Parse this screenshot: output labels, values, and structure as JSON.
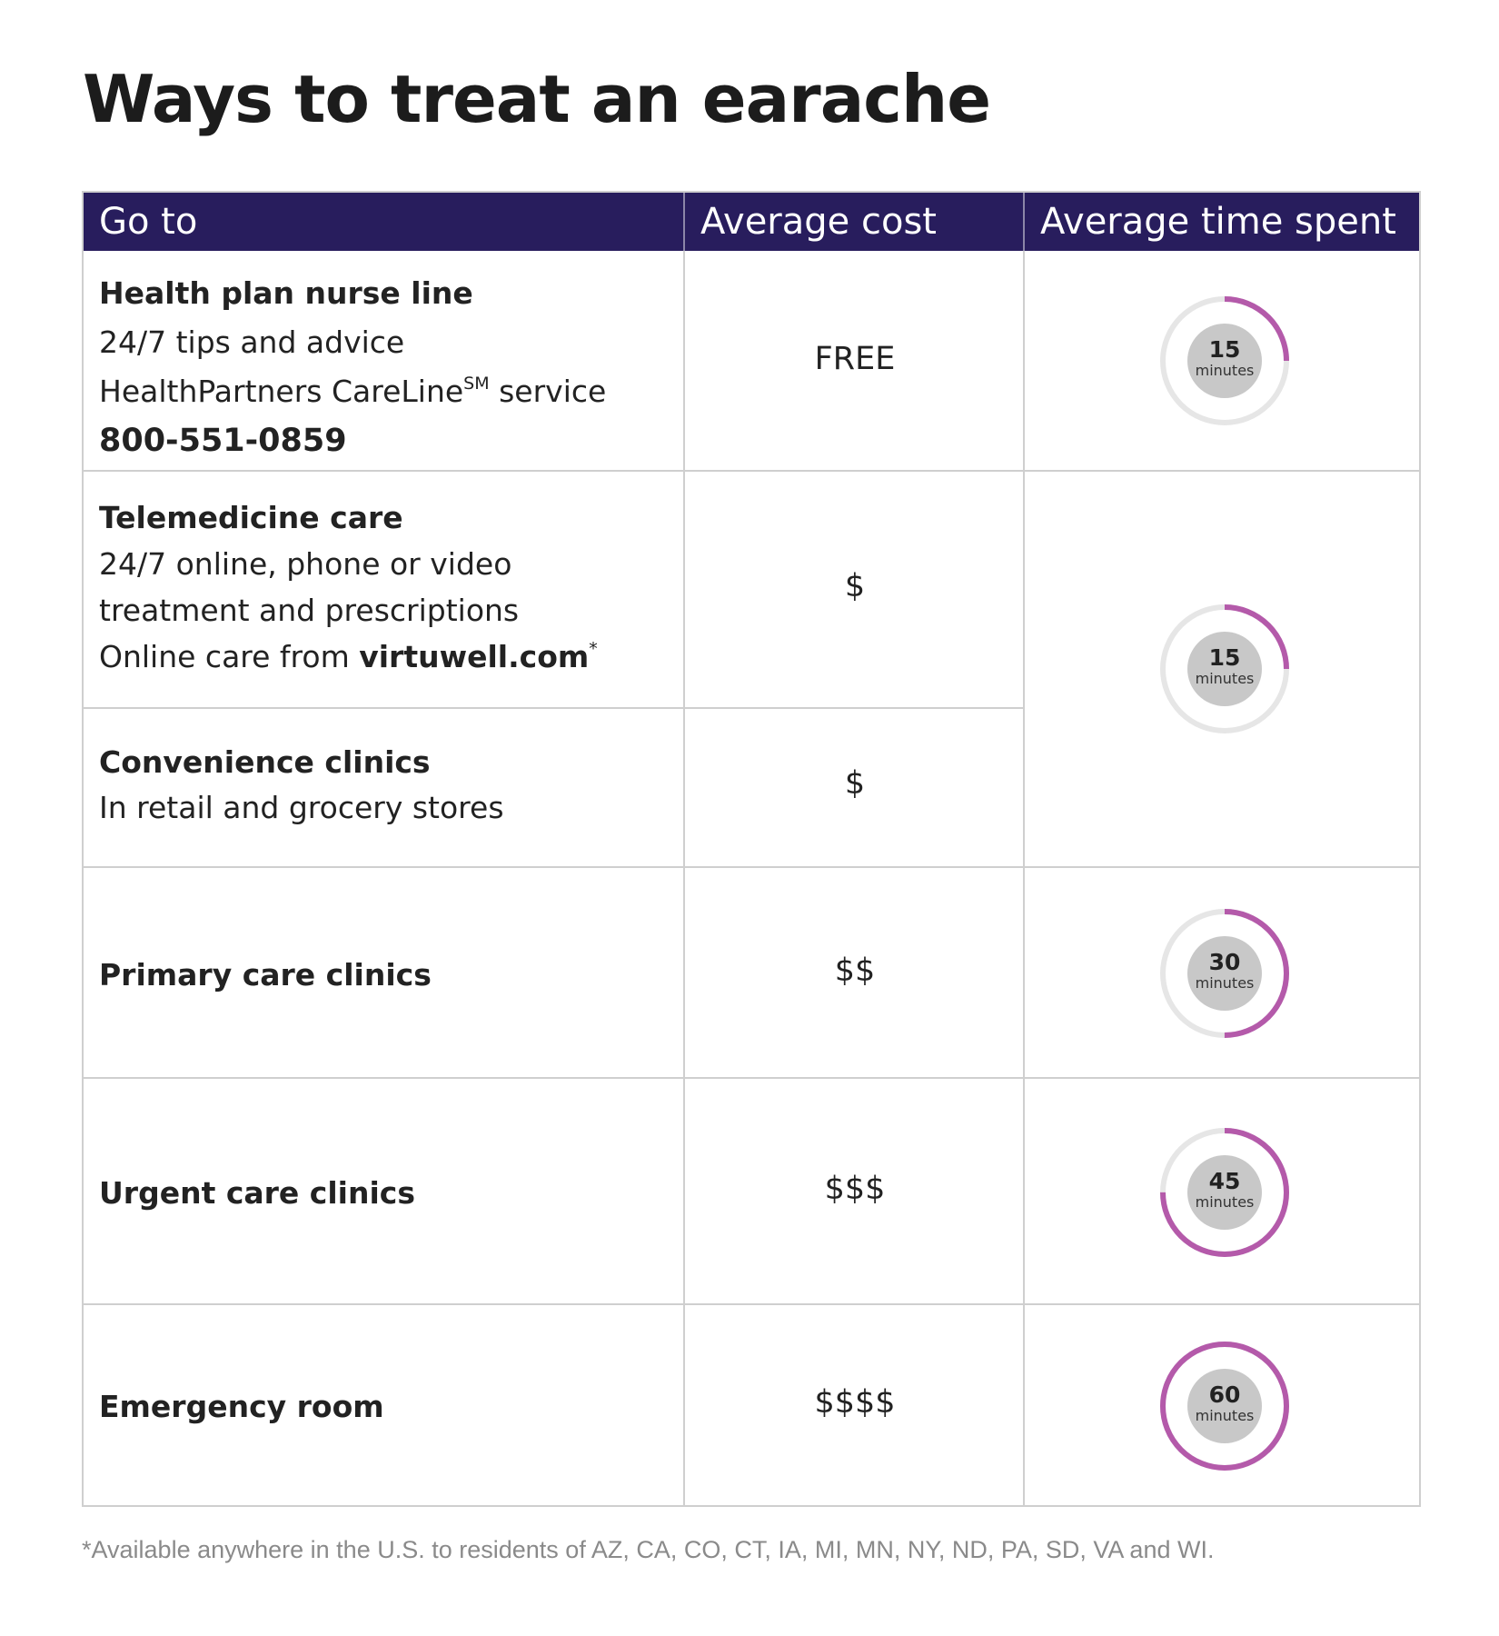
{
  "title": "Ways to treat an earache",
  "table": {
    "headers": [
      "Go to",
      "Average cost",
      "Average time spent"
    ],
    "rows": [
      {
        "name": "Health plan nurse line",
        "lines": [
          "24/7 tips and advice",
          "HealthPartners CareLine",
          "SM",
          " service",
          "800-551-0859"
        ],
        "cost": "FREE"
      },
      {
        "name": "Telemedicine care",
        "lines": [
          "24/7 online, phone or video",
          "treatment and prescriptions",
          "Online care from ",
          "virtuwell.com",
          "*"
        ],
        "cost": "$"
      },
      {
        "name": "Convenience clinics",
        "lines": [
          "In retail and grocery stores"
        ],
        "cost": "$"
      },
      {
        "name": "Primary care clinics",
        "lines": [],
        "cost": "$$"
      },
      {
        "name": "Urgent care clinics",
        "lines": [],
        "cost": "$$$"
      },
      {
        "name": "Emergency room",
        "lines": [],
        "cost": "$$$$"
      }
    ],
    "times": [
      {
        "value": "15",
        "unit": "minutes",
        "fraction": 0.25
      },
      {
        "value": "15",
        "unit": "minutes",
        "fraction": 0.25
      },
      {
        "value": "30",
        "unit": "minutes",
        "fraction": 0.5
      },
      {
        "value": "45",
        "unit": "minutes",
        "fraction": 0.75
      },
      {
        "value": "60",
        "unit": "minutes",
        "fraction": 1.0
      }
    ]
  },
  "footnote": "*Available anywhere in the U.S. to residents of AZ, CA, CO, CT, IA, MI, MN, NY, ND, PA, SD, VA and WI.",
  "colors": {
    "header_bg": "#281d5d",
    "ring_accent": "#b45aaa",
    "ring_track": "#e6e6e6",
    "ring_center": "#c8c8c8"
  }
}
